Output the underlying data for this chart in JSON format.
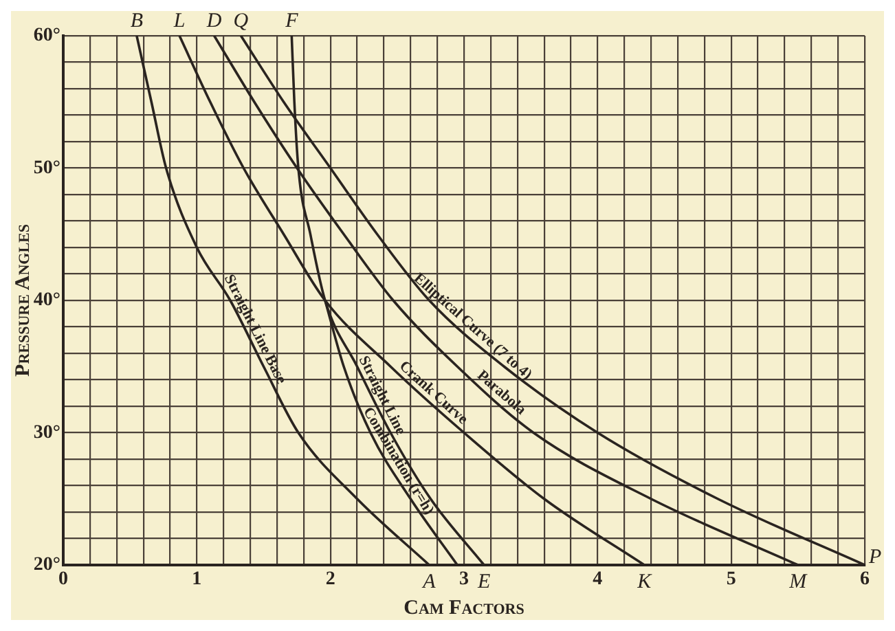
{
  "chart_data": {
    "type": "line",
    "xlabel": "Cam Factors",
    "ylabel": "Pressure Angles",
    "xlim": [
      0,
      6
    ],
    "ylim": [
      20,
      60
    ],
    "xticks": [
      0,
      {
        "value": 0.2,
        "label": null
      },
      {
        "value": 0.4,
        "label": null
      },
      {
        "value": 0.6,
        "label": null
      },
      {
        "value": 0.8,
        "label": null
      },
      1,
      {
        "value": 1.2,
        "label": null
      },
      {
        "value": 1.4,
        "label": null
      },
      {
        "value": 1.6,
        "label": null
      },
      {
        "value": 1.8,
        "label": null
      },
      2,
      {
        "value": 2.2,
        "label": null
      },
      {
        "value": 2.4,
        "label": null
      },
      {
        "value": 2.6,
        "label": null
      },
      {
        "value": 2.8,
        "label": null
      },
      3,
      {
        "value": 3.2,
        "label": null
      },
      {
        "value": 3.4,
        "label": null
      },
      {
        "value": 3.6,
        "label": null
      },
      {
        "value": 3.8,
        "label": null
      },
      4,
      {
        "value": 4.2,
        "label": null
      },
      {
        "value": 4.4,
        "label": null
      },
      {
        "value": 4.6,
        "label": null
      },
      {
        "value": 4.8,
        "label": null
      },
      5,
      {
        "value": 5.2,
        "label": null
      },
      {
        "value": 5.4,
        "label": null
      },
      {
        "value": 5.6,
        "label": null
      },
      {
        "value": 5.8,
        "label": null
      },
      6
    ],
    "yticks": [
      {
        "value": 20,
        "label": "20°"
      },
      {
        "value": 22,
        "label": null
      },
      {
        "value": 24,
        "label": null
      },
      {
        "value": 26,
        "label": null
      },
      {
        "value": 28,
        "label": null
      },
      {
        "value": 30,
        "label": "30°"
      },
      {
        "value": 32,
        "label": null
      },
      {
        "value": 34,
        "label": null
      },
      {
        "value": 36,
        "label": null
      },
      {
        "value": 38,
        "label": null
      },
      {
        "value": 40,
        "label": "40°"
      },
      {
        "value": 42,
        "label": null
      },
      {
        "value": 44,
        "label": null
      },
      {
        "value": 46,
        "label": null
      },
      {
        "value": 48,
        "label": null
      },
      {
        "value": 50,
        "label": "50°"
      },
      {
        "value": 52,
        "label": null
      },
      {
        "value": 54,
        "label": null
      },
      {
        "value": 56,
        "label": null
      },
      {
        "value": 58,
        "label": null
      },
      {
        "value": 60,
        "label": "60°"
      }
    ],
    "grid": true,
    "series": [
      {
        "name": "Straight Line Base",
        "color": "#2a2420",
        "x": [
          0.55,
          0.66,
          0.77,
          1.0,
          1.25,
          1.5,
          1.76,
          2.2,
          2.74
        ],
        "values": [
          60,
          55,
          50,
          44,
          40,
          35,
          30,
          25,
          20
        ]
      },
      {
        "name": "Combination (r=h)",
        "color": "#2a2420",
        "x": [
          1.96,
          2.1,
          2.3,
          2.6,
          2.95
        ],
        "values": [
          40,
          35,
          30,
          25,
          20
        ]
      },
      {
        "name": "Straight Line",
        "color": "#2a2420",
        "x": [
          1.71,
          1.73,
          1.76,
          1.85,
          1.96,
          2.2,
          2.45,
          2.75,
          3.15
        ],
        "values": [
          60,
          55,
          50,
          45,
          40,
          35,
          30,
          25,
          20
        ]
      },
      {
        "name": "Crank Curve",
        "color": "#2a2420",
        "x": [
          0.87,
          1.1,
          1.35,
          1.65,
          1.96,
          2.45,
          3.0,
          3.6,
          4.35
        ],
        "values": [
          60,
          55,
          50,
          45,
          40,
          35,
          30,
          25,
          20
        ]
      },
      {
        "name": "Parabola",
        "color": "#2a2420",
        "x": [
          1.13,
          1.43,
          1.75,
          2.1,
          2.47,
          2.95,
          3.52,
          4.4,
          5.5
        ],
        "values": [
          60,
          55,
          50,
          45,
          40,
          35,
          30,
          25,
          20
        ]
      },
      {
        "name": "Elliptical Curve (7 to 4)",
        "color": "#2a2420",
        "x": [
          1.33,
          1.65,
          2.0,
          2.35,
          2.74,
          3.3,
          4.0,
          4.9,
          6.0
        ],
        "values": [
          60,
          55,
          50,
          45,
          40,
          35,
          30,
          25,
          20
        ]
      }
    ],
    "annotations": [
      {
        "text": "B",
        "x": 0.55,
        "y": 60
      },
      {
        "text": "L",
        "x": 0.87,
        "y": 60
      },
      {
        "text": "D",
        "x": 1.13,
        "y": 60
      },
      {
        "text": "Q",
        "x": 1.33,
        "y": 60
      },
      {
        "text": "F",
        "x": 1.71,
        "y": 60
      },
      {
        "text": "A",
        "x": 2.74,
        "y": 20
      },
      {
        "text": "E",
        "x": 3.15,
        "y": 20
      },
      {
        "text": "K",
        "x": 4.35,
        "y": 20
      },
      {
        "text": "M",
        "x": 5.5,
        "y": 20
      },
      {
        "text": "P",
        "x": 6,
        "y": 20
      }
    ]
  }
}
